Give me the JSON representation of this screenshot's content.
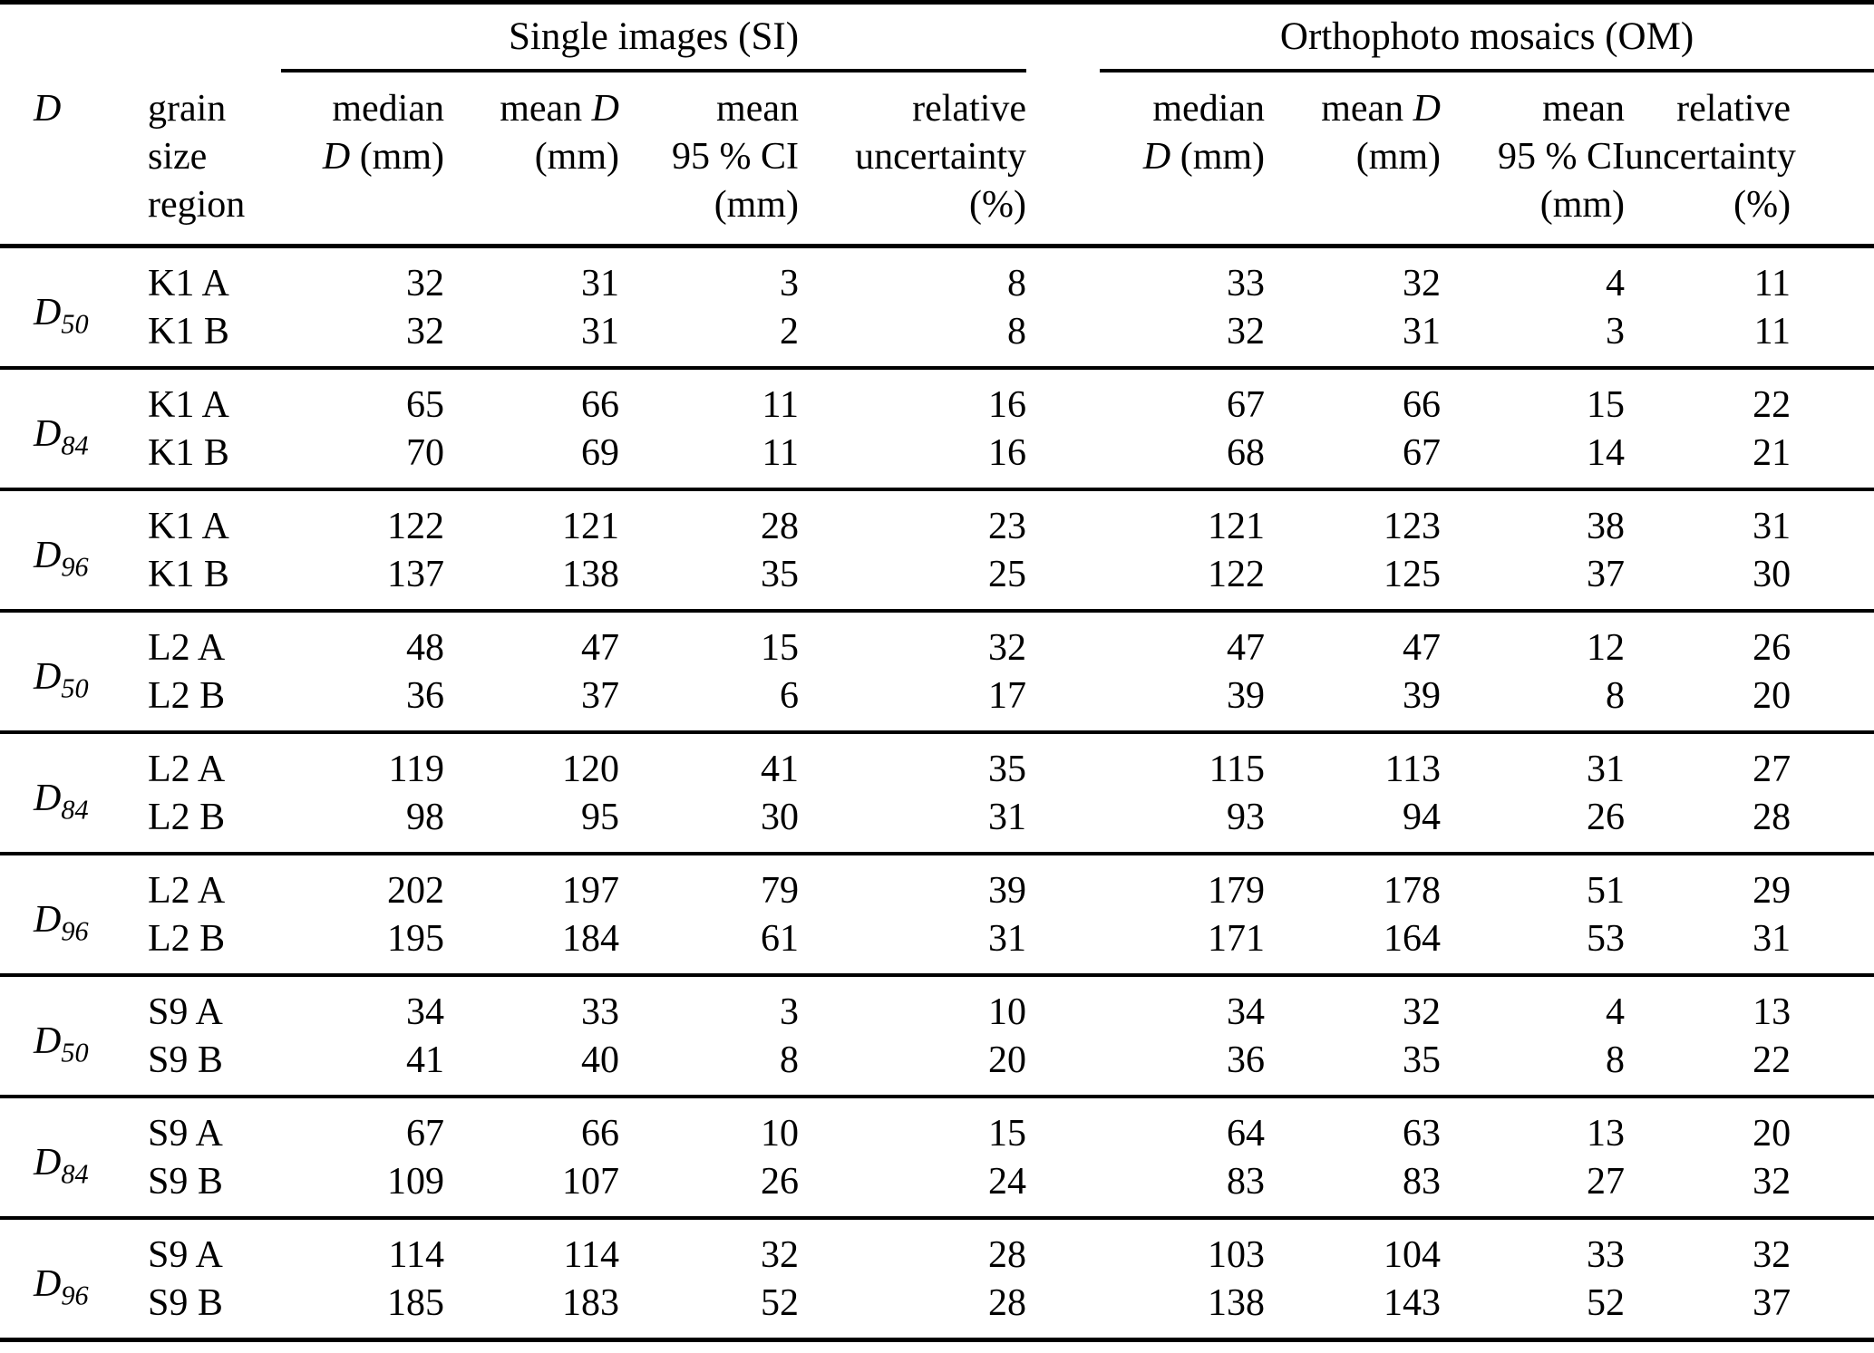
{
  "table": {
    "title_si": "Single images (SI)",
    "title_om": "Orthophoto mosaics (OM)",
    "header_d": "D",
    "header_region_lines": [
      "grain",
      "size",
      "region"
    ],
    "metric_header_lines": [
      [
        "median",
        "D (mm)"
      ],
      [
        "mean D",
        "(mm)"
      ],
      [
        "mean",
        "95 % CI",
        "(mm)"
      ],
      [
        "relative",
        "uncertainty",
        "(%)"
      ]
    ],
    "groups": [
      {
        "d": "D",
        "sub": "50",
        "rows": [
          {
            "region": "K1 A",
            "si": [
              32,
              31,
              3,
              8
            ],
            "om": [
              33,
              32,
              4,
              11
            ]
          },
          {
            "region": "K1 B",
            "si": [
              32,
              31,
              2,
              8
            ],
            "om": [
              32,
              31,
              3,
              11
            ]
          }
        ]
      },
      {
        "d": "D",
        "sub": "84",
        "rows": [
          {
            "region": "K1 A",
            "si": [
              65,
              66,
              11,
              16
            ],
            "om": [
              67,
              66,
              15,
              22
            ]
          },
          {
            "region": "K1 B",
            "si": [
              70,
              69,
              11,
              16
            ],
            "om": [
              68,
              67,
              14,
              21
            ]
          }
        ]
      },
      {
        "d": "D",
        "sub": "96",
        "rows": [
          {
            "region": "K1 A",
            "si": [
              122,
              121,
              28,
              23
            ],
            "om": [
              121,
              123,
              38,
              31
            ]
          },
          {
            "region": "K1 B",
            "si": [
              137,
              138,
              35,
              25
            ],
            "om": [
              122,
              125,
              37,
              30
            ]
          }
        ]
      },
      {
        "d": "D",
        "sub": "50",
        "rows": [
          {
            "region": "L2 A",
            "si": [
              48,
              47,
              15,
              32
            ],
            "om": [
              47,
              47,
              12,
              26
            ]
          },
          {
            "region": "L2 B",
            "si": [
              36,
              37,
              6,
              17
            ],
            "om": [
              39,
              39,
              8,
              20
            ]
          }
        ]
      },
      {
        "d": "D",
        "sub": "84",
        "rows": [
          {
            "region": "L2 A",
            "si": [
              119,
              120,
              41,
              35
            ],
            "om": [
              115,
              113,
              31,
              27
            ]
          },
          {
            "region": "L2 B",
            "si": [
              98,
              95,
              30,
              31
            ],
            "om": [
              93,
              94,
              26,
              28
            ]
          }
        ]
      },
      {
        "d": "D",
        "sub": "96",
        "rows": [
          {
            "region": "L2 A",
            "si": [
              202,
              197,
              79,
              39
            ],
            "om": [
              179,
              178,
              51,
              29
            ]
          },
          {
            "region": "L2 B",
            "si": [
              195,
              184,
              61,
              31
            ],
            "om": [
              171,
              164,
              53,
              31
            ]
          }
        ]
      },
      {
        "d": "D",
        "sub": "50",
        "rows": [
          {
            "region": "S9 A",
            "si": [
              34,
              33,
              3,
              10
            ],
            "om": [
              34,
              32,
              4,
              13
            ]
          },
          {
            "region": "S9 B",
            "si": [
              41,
              40,
              8,
              20
            ],
            "om": [
              36,
              35,
              8,
              22
            ]
          }
        ]
      },
      {
        "d": "D",
        "sub": "84",
        "rows": [
          {
            "region": "S9 A",
            "si": [
              67,
              66,
              10,
              15
            ],
            "om": [
              64,
              63,
              13,
              20
            ]
          },
          {
            "region": "S9 B",
            "si": [
              109,
              107,
              26,
              24
            ],
            "om": [
              83,
              83,
              27,
              32
            ]
          }
        ]
      },
      {
        "d": "D",
        "sub": "96",
        "rows": [
          {
            "region": "S9 A",
            "si": [
              114,
              114,
              32,
              28
            ],
            "om": [
              103,
              104,
              33,
              32
            ]
          },
          {
            "region": "S9 B",
            "si": [
              185,
              183,
              52,
              28
            ],
            "om": [
              138,
              143,
              52,
              37
            ]
          }
        ]
      }
    ]
  },
  "colors": {
    "text": "#000000",
    "background": "#ffffff",
    "rule": "#000000"
  }
}
